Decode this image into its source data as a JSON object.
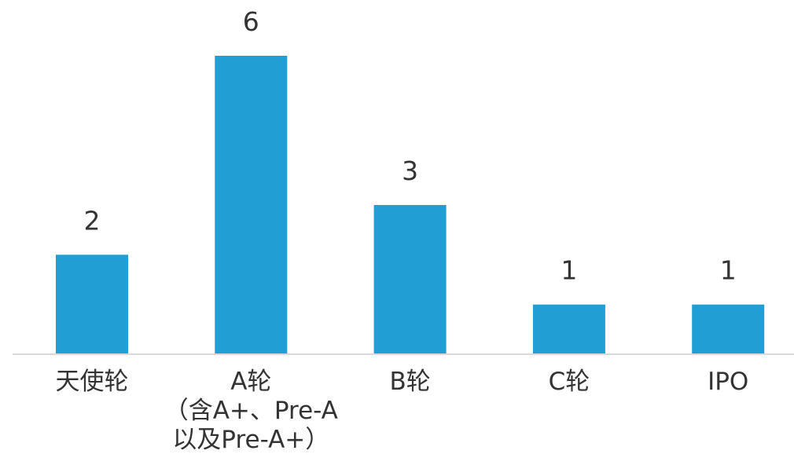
{
  "chart_data": {
    "type": "bar",
    "categories": [
      [
        "天使轮"
      ],
      [
        "A轮",
        "（含A+、Pre-A",
        "以及Pre-A+）"
      ],
      [
        "B轮"
      ],
      [
        "C轮"
      ],
      [
        "IPO"
      ]
    ],
    "values": [
      2,
      6,
      3,
      1,
      1
    ],
    "data_labels": [
      "2",
      "6",
      "3",
      "1",
      "1"
    ],
    "title": "",
    "xlabel": "",
    "ylabel": "",
    "ylim": [
      0,
      6
    ],
    "grid": false,
    "legend": "none",
    "colors": {
      "bar": "#1F9FD4",
      "axis": "#D9D9D9",
      "text": "#333333"
    }
  }
}
